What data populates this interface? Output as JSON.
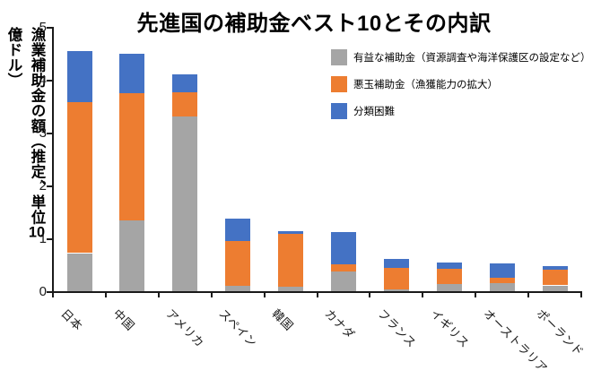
{
  "chart_data": {
    "type": "bar",
    "stacked": true,
    "title": "先進国の補助金ベスト10とその内訳",
    "ylabel": "漁業補助金の額（推定、単位10億ドル）",
    "ylabel_parts": {
      "before": "漁業補助金の額（推定、単位",
      "digits": "10",
      "after": "億ドル）"
    },
    "xlabel": "",
    "ylim": [
      0,
      5
    ],
    "yticks": [
      0,
      1,
      2,
      3,
      4,
      5
    ],
    "grid": false,
    "legend_position": "top-right",
    "categories": [
      "日本",
      "中国",
      "アメリカ",
      "スペイン",
      "韓国",
      "カナダ",
      "フランス",
      "イギリス",
      "オーストラリア",
      "ポーランド"
    ],
    "series": [
      {
        "name": "有益な補助金（資源調査や海洋保護区の設定など）",
        "color": "#A5A5A5",
        "values": [
          0.72,
          1.34,
          3.31,
          0.1,
          0.08,
          0.38,
          0.04,
          0.14,
          0.15,
          0.11
        ]
      },
      {
        "name": "悪玉補助金（漁獲能力の拡大）",
        "color": "#ED7D31",
        "values": [
          2.86,
          2.41,
          0.46,
          0.85,
          1.01,
          0.13,
          0.4,
          0.28,
          0.1,
          0.29
        ]
      },
      {
        "name": "分類困難",
        "color": "#4472C4",
        "values": [
          0.96,
          0.74,
          0.33,
          0.42,
          0.05,
          0.61,
          0.17,
          0.12,
          0.27,
          0.08
        ]
      }
    ],
    "totals": [
      4.54,
      4.49,
      4.1,
      1.37,
      1.14,
      1.12,
      0.61,
      0.54,
      0.52,
      0.48
    ],
    "axis_color": "#1a1a1a"
  }
}
